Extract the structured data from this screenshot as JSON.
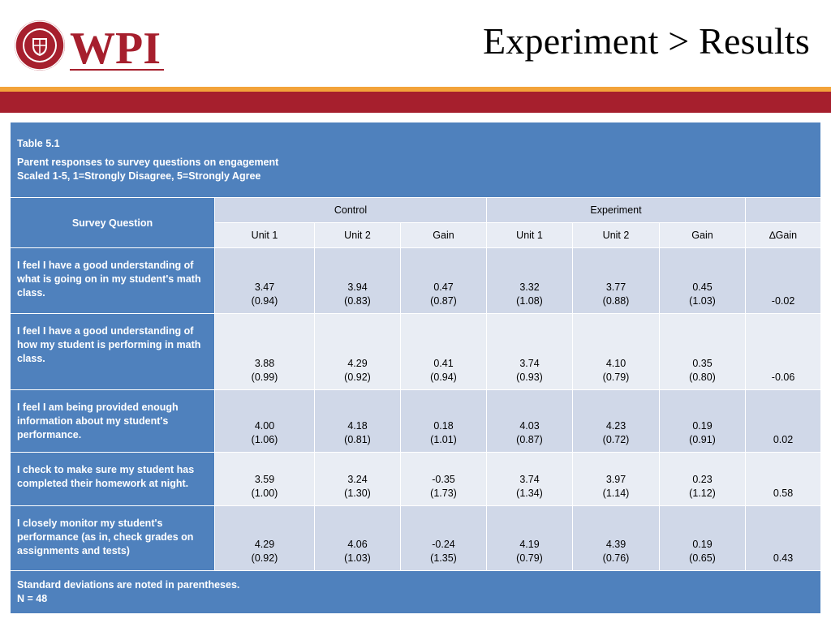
{
  "header": {
    "logo_text": "WPI",
    "seal_text": "WORCESTER POLYTECHNIC INSTITUTE 1865",
    "title": "Experiment > Results"
  },
  "colors": {
    "accent_orange": "#f3a33a",
    "accent_red": "#a61f2d",
    "table_blue": "#4f81bd",
    "row_dark": "#d0d8e8",
    "row_light": "#e9edf4"
  },
  "table": {
    "caption_title": "Table 5.1",
    "caption_line1": "Parent responses to survey questions on engagement",
    "caption_line2": "Scaled 1-5, 1=Strongly Disagree, 5=Strongly Agree",
    "question_header": "Survey Question",
    "group_control": "Control",
    "group_experiment": "Experiment",
    "sub_headers": [
      "Unit 1",
      "Unit 2",
      "Gain",
      "Unit 1",
      "Unit 2",
      "Gain",
      "∆Gain"
    ],
    "rows": [
      {
        "question": "I feel I have a good understanding of what is going on in my student's math class.",
        "c_u1": "3.47",
        "c_u1_sd": "(0.94)",
        "c_u2": "3.94",
        "c_u2_sd": "(0.83)",
        "c_gain": "0.47",
        "c_gain_sd": "(0.87)",
        "e_u1": "3.32",
        "e_u1_sd": "(1.08)",
        "e_u2": "3.77",
        "e_u2_sd": "(0.88)",
        "e_gain": "0.45",
        "e_gain_sd": "(1.03)",
        "dgain": "-0.02"
      },
      {
        "question": "I feel I have a good understanding of how my student is performing in math class.",
        "c_u1": "3.88",
        "c_u1_sd": "(0.99)",
        "c_u2": "4.29",
        "c_u2_sd": "(0.92)",
        "c_gain": "0.41",
        "c_gain_sd": "(0.94)",
        "e_u1": "3.74",
        "e_u1_sd": "(0.93)",
        "e_u2": "4.10",
        "e_u2_sd": "(0.79)",
        "e_gain": "0.35",
        "e_gain_sd": "(0.80)",
        "dgain": "-0.06"
      },
      {
        "question": "I feel I am being provided enough information about my student's performance.",
        "c_u1": "4.00",
        "c_u1_sd": "(1.06)",
        "c_u2": "4.18",
        "c_u2_sd": "(0.81)",
        "c_gain": "0.18",
        "c_gain_sd": "(1.01)",
        "e_u1": "4.03",
        "e_u1_sd": "(0.87)",
        "e_u2": "4.23",
        "e_u2_sd": "(0.72)",
        "e_gain": "0.19",
        "e_gain_sd": "(0.91)",
        "dgain": "0.02"
      },
      {
        "question": "I check to make sure my student has completed their homework at night.",
        "c_u1": "3.59",
        "c_u1_sd": "(1.00)",
        "c_u2": "3.24",
        "c_u2_sd": "(1.30)",
        "c_gain": "-0.35",
        "c_gain_sd": "(1.73)",
        "e_u1": "3.74",
        "e_u1_sd": "(1.34)",
        "e_u2": "3.97",
        "e_u2_sd": "(1.14)",
        "e_gain": "0.23",
        "e_gain_sd": "(1.12)",
        "dgain": "0.58"
      },
      {
        "question": "I closely monitor my student's performance (as in, check grades on assignments and tests)",
        "c_u1": "4.29",
        "c_u1_sd": "(0.92)",
        "c_u2": "4.06",
        "c_u2_sd": "(1.03)",
        "c_gain": "-0.24",
        "c_gain_sd": "(1.35)",
        "e_u1": "4.19",
        "e_u1_sd": "(0.79)",
        "e_u2": "4.39",
        "e_u2_sd": "(0.76)",
        "e_gain": "0.19",
        "e_gain_sd": "(0.65)",
        "dgain": "0.43"
      }
    ],
    "footer_line1": "Standard deviations are noted in parentheses.",
    "footer_line2": "N = 48"
  }
}
